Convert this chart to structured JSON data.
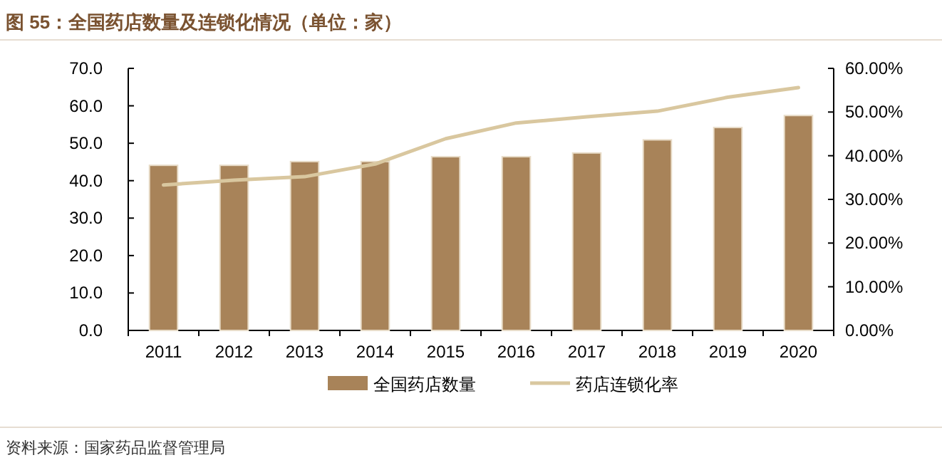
{
  "chart_data": {
    "type": "bar",
    "title": "图 55：全国药店数量及连锁化情况（单位：家）",
    "categories": [
      "2011",
      "2012",
      "2013",
      "2014",
      "2015",
      "2016",
      "2017",
      "2018",
      "2019",
      "2020"
    ],
    "series": [
      {
        "name": "全国药店数量",
        "color": "#a88359",
        "values": [
          44.1,
          44.1,
          45.1,
          45.1,
          46.4,
          46.4,
          47.4,
          50.9,
          54.2,
          57.4
        ]
      },
      {
        "name": "药店连锁化率",
        "type": "line",
        "axis": "y2",
        "color": "#d9c79f",
        "values": [
          33.3,
          34.4,
          35.2,
          38.1,
          43.9,
          47.5,
          48.9,
          50.2,
          53.4,
          55.6
        ]
      }
    ],
    "ylim": [
      0,
      70
    ],
    "yticks": [
      {
        "value": 0,
        "label": "0.0"
      },
      {
        "value": 10,
        "label": "10.0"
      },
      {
        "value": 20,
        "label": "20.0"
      },
      {
        "value": 30,
        "label": "30.0"
      },
      {
        "value": 40,
        "label": "40.0"
      },
      {
        "value": 50,
        "label": "50.0"
      },
      {
        "value": 60,
        "label": "60.0"
      },
      {
        "value": 70,
        "label": "70.0"
      }
    ],
    "y2lim": [
      0,
      60
    ],
    "y2ticks": [
      {
        "value": 0,
        "label": "0.00%"
      },
      {
        "value": 10,
        "label": "10.00%"
      },
      {
        "value": 20,
        "label": "20.00%"
      },
      {
        "value": 30,
        "label": "30.00%"
      },
      {
        "value": 40,
        "label": "40.00%"
      },
      {
        "value": 50,
        "label": "50.00%"
      },
      {
        "value": 60,
        "label": "60.00%"
      }
    ],
    "legend": "bottom",
    "grid": false,
    "annotations": [
      "资料来源：国家药品监督管理局"
    ]
  }
}
